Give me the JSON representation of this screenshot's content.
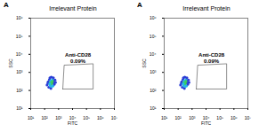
{
  "chart_data": [
    {
      "type": "scatter",
      "panel_label": "A",
      "title": "Irrelevant Protein",
      "xlabel": "FITC",
      "ylabel": "SSC",
      "log": true,
      "xlim": [
        10,
        10000000
      ],
      "xticks": [
        {
          "value": 10,
          "label": "10¹"
        },
        {
          "value": 100,
          "label": "10²"
        },
        {
          "value": 1000,
          "label": "10³"
        },
        {
          "value": 10000,
          "label": "10⁴"
        },
        {
          "value": 100000,
          "label": "10⁵"
        },
        {
          "value": 1000000,
          "label": "10⁶"
        },
        {
          "value": 10000000,
          "label": "10⁷"
        }
      ],
      "ylim": [
        10,
        1000000
      ],
      "yticks": [
        {
          "value": 10,
          "label": "10¹"
        },
        {
          "value": 100,
          "label": "10²"
        },
        {
          "value": 1000,
          "label": "10³"
        },
        {
          "value": 10000,
          "label": "10⁴"
        },
        {
          "value": 100000,
          "label": "10⁵"
        },
        {
          "value": 1000000,
          "label": "10⁶"
        }
      ],
      "x": [
        150,
        180,
        200,
        220,
        250,
        260,
        280,
        300,
        350,
        380,
        400,
        450,
        500,
        550,
        240,
        300,
        170,
        420,
        600,
        280,
        330,
        230,
        360
      ],
      "y": [
        200,
        300,
        150,
        400,
        180,
        280,
        350,
        220,
        250,
        400,
        180,
        300,
        220,
        380,
        500,
        550,
        250,
        500,
        280,
        130,
        170,
        230,
        320
      ],
      "colors": [
        "#2b3fd6",
        "#2b3fd6",
        "#2b3fd6",
        "#2b3fd6",
        "#27b8e6",
        "#3ccf5a",
        "#27b8e6",
        "#3ccf5a",
        "#3ccf5a",
        "#27b8e6",
        "#27b8e6",
        "#2b3fd6",
        "#2b3fd6",
        "#2b3fd6",
        "#2b3fd6",
        "#2b3fd6",
        "#2b3fd6",
        "#2b3fd6",
        "#2b3fd6",
        "#2b3fd6",
        "#27b8e6",
        "#27b8e6",
        "#3ccf5a"
      ],
      "gate": {
        "name": "Anti-CD28",
        "percent_label": "0.09%",
        "x": [
          2000,
          2500,
          300000,
          300000
        ],
        "y": [
          120,
          2500,
          3000,
          120
        ]
      }
    },
    {
      "type": "scatter",
      "panel_label": "A",
      "title": "Irrelevant Protein",
      "xlabel": "FITC",
      "ylabel": "SSC",
      "log": true,
      "xlim": [
        10,
        10000000
      ],
      "xticks": [
        {
          "value": 10,
          "label": "10¹"
        },
        {
          "value": 100,
          "label": "10²"
        },
        {
          "value": 1000,
          "label": "10³"
        },
        {
          "value": 10000,
          "label": "10⁴"
        },
        {
          "value": 100000,
          "label": "10⁵"
        },
        {
          "value": 1000000,
          "label": "10⁶"
        },
        {
          "value": 10000000,
          "label": "10⁷"
        }
      ],
      "ylim": [
        10,
        1000000
      ],
      "yticks": [
        {
          "value": 10,
          "label": "10¹"
        },
        {
          "value": 100,
          "label": "10²"
        },
        {
          "value": 1000,
          "label": "10³"
        },
        {
          "value": 10000,
          "label": "10⁴"
        },
        {
          "value": 100000,
          "label": "10⁵"
        },
        {
          "value": 1000000,
          "label": "10⁶"
        }
      ],
      "x": [
        150,
        180,
        200,
        220,
        250,
        260,
        280,
        300,
        350,
        380,
        400,
        450,
        500,
        550,
        240,
        300,
        170,
        420,
        600,
        280,
        330,
        230,
        360
      ],
      "y": [
        200,
        300,
        150,
        400,
        180,
        280,
        350,
        220,
        250,
        400,
        180,
        300,
        220,
        380,
        500,
        550,
        250,
        500,
        280,
        130,
        170,
        230,
        320
      ],
      "colors": [
        "#2b3fd6",
        "#2b3fd6",
        "#2b3fd6",
        "#2b3fd6",
        "#27b8e6",
        "#3ccf5a",
        "#27b8e6",
        "#3ccf5a",
        "#3ccf5a",
        "#27b8e6",
        "#27b8e6",
        "#2b3fd6",
        "#2b3fd6",
        "#2b3fd6",
        "#2b3fd6",
        "#2b3fd6",
        "#2b3fd6",
        "#2b3fd6",
        "#2b3fd6",
        "#2b3fd6",
        "#27b8e6",
        "#27b8e6",
        "#3ccf5a"
      ],
      "gate": {
        "name": "Anti-CD28",
        "percent_label": "0.09%",
        "x": [
          2000,
          2500,
          300000,
          300000
        ],
        "y": [
          120,
          2500,
          3000,
          120
        ]
      }
    }
  ]
}
